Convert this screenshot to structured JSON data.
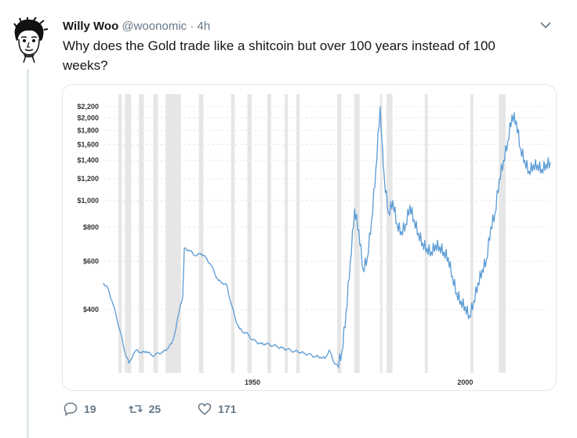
{
  "tweet": {
    "author_name": "Willy Woo",
    "handle": "@woonomic",
    "separator": "·",
    "time": "4h",
    "text": "Why does the Gold trade like a shitcoin but over 100 years instead of 100 weeks?"
  },
  "actions": {
    "replies": "19",
    "retweets": "25",
    "likes": "171"
  },
  "colors": {
    "line": "#5b9bd5",
    "recession": "#e6e6e6",
    "muted": "#657786"
  },
  "icons": [
    "avatar-sketch",
    "chevron-down-icon",
    "reply-icon",
    "retweet-icon",
    "like-icon"
  ],
  "chart_data": {
    "type": "line",
    "scale": "log",
    "x_ticks": [
      1950,
      2000
    ],
    "y_ticks": [
      400,
      600,
      800,
      1000,
      1200,
      1400,
      1600,
      1800,
      2000,
      2200
    ],
    "y_tick_labels": [
      "$400",
      "$600",
      "$800",
      "$1,000",
      "$1,200",
      "$1,400",
      "$1,600",
      "$1,800",
      "$2,000",
      "$2,200"
    ],
    "xlim": [
      1915,
      2020
    ],
    "ylim": [
      235,
      2350
    ],
    "grid": true,
    "recessions": [
      [
        1918.5,
        1919.3
      ],
      [
        1920.0,
        1921.5
      ],
      [
        1923.3,
        1924.5
      ],
      [
        1926.7,
        1927.8
      ],
      [
        1929.6,
        1933.2
      ],
      [
        1937.4,
        1938.5
      ],
      [
        1945.0,
        1945.8
      ],
      [
        1948.8,
        1949.8
      ],
      [
        1953.5,
        1954.4
      ],
      [
        1957.6,
        1958.3
      ],
      [
        1960.3,
        1961.1
      ],
      [
        1969.9,
        1970.9
      ],
      [
        1973.9,
        1975.2
      ],
      [
        1980.0,
        1980.5
      ],
      [
        1981.5,
        1982.9
      ],
      [
        1990.5,
        1991.2
      ],
      [
        2001.2,
        2001.9
      ],
      [
        2007.9,
        2009.5
      ]
    ],
    "series": [
      {
        "values": [
          [
            1915.0,
            500
          ],
          [
            1916.0,
            480
          ],
          [
            1917.0,
            430
          ],
          [
            1918.0,
            380
          ],
          [
            1919.0,
            330
          ],
          [
            1920.0,
            280
          ],
          [
            1921.0,
            255
          ],
          [
            1922.0,
            275
          ],
          [
            1923.0,
            285
          ],
          [
            1924.0,
            278
          ],
          [
            1925.0,
            282
          ],
          [
            1926.0,
            275
          ],
          [
            1927.0,
            272
          ],
          [
            1928.0,
            278
          ],
          [
            1929.0,
            280
          ],
          [
            1930.0,
            288
          ],
          [
            1931.0,
            300
          ],
          [
            1932.0,
            340
          ],
          [
            1933.0,
            410
          ],
          [
            1933.6,
            440
          ],
          [
            1934.0,
            670
          ],
          [
            1935.0,
            660
          ],
          [
            1936.0,
            640
          ],
          [
            1937.0,
            630
          ],
          [
            1938.0,
            640
          ],
          [
            1939.0,
            620
          ],
          [
            1940.0,
            590
          ],
          [
            1941.0,
            550
          ],
          [
            1942.0,
            510
          ],
          [
            1943.0,
            500
          ],
          [
            1944.0,
            490
          ],
          [
            1945.0,
            420
          ],
          [
            1946.0,
            370
          ],
          [
            1947.0,
            340
          ],
          [
            1948.0,
            330
          ],
          [
            1949.0,
            325
          ],
          [
            1950.0,
            310
          ],
          [
            1951.0,
            305
          ],
          [
            1952.0,
            300
          ],
          [
            1953.0,
            300
          ],
          [
            1954.0,
            298
          ],
          [
            1955.0,
            296
          ],
          [
            1956.0,
            292
          ],
          [
            1957.0,
            290
          ],
          [
            1958.0,
            287
          ],
          [
            1959.0,
            284
          ],
          [
            1960.0,
            282
          ],
          [
            1961.0,
            280
          ],
          [
            1962.0,
            278
          ],
          [
            1963.0,
            275
          ],
          [
            1964.0,
            272
          ],
          [
            1965.0,
            270
          ],
          [
            1966.0,
            268
          ],
          [
            1967.0,
            265
          ],
          [
            1968.0,
            285
          ],
          [
            1969.0,
            260
          ],
          [
            1970.0,
            250
          ],
          [
            1971.0,
            280
          ],
          [
            1972.0,
            390
          ],
          [
            1973.0,
            600
          ],
          [
            1974.0,
            930
          ],
          [
            1975.0,
            780
          ],
          [
            1976.0,
            560
          ],
          [
            1977.0,
            620
          ],
          [
            1978.0,
            850
          ],
          [
            1979.0,
            1300
          ],
          [
            1980.0,
            2200
          ],
          [
            1980.5,
            1600
          ],
          [
            1981.0,
            1200
          ],
          [
            1982.0,
            900
          ],
          [
            1983.0,
            1000
          ],
          [
            1984.0,
            820
          ],
          [
            1985.0,
            770
          ],
          [
            1986.0,
            820
          ],
          [
            1987.0,
            960
          ],
          [
            1988.0,
            850
          ],
          [
            1989.0,
            760
          ],
          [
            1990.0,
            700
          ],
          [
            1991.0,
            670
          ],
          [
            1992.0,
            650
          ],
          [
            1993.0,
            690
          ],
          [
            1994.0,
            680
          ],
          [
            1995.0,
            650
          ],
          [
            1996.0,
            620
          ],
          [
            1997.0,
            530
          ],
          [
            1998.0,
            460
          ],
          [
            1999.0,
            430
          ],
          [
            2000.0,
            410
          ],
          [
            2001.0,
            380
          ],
          [
            2002.0,
            430
          ],
          [
            2003.0,
            500
          ],
          [
            2004.0,
            560
          ],
          [
            2005.0,
            610
          ],
          [
            2006.0,
            800
          ],
          [
            2007.0,
            900
          ],
          [
            2008.0,
            1200
          ],
          [
            2009.0,
            1400
          ],
          [
            2010.0,
            1650
          ],
          [
            2011.0,
            2050
          ],
          [
            2012.0,
            1950
          ],
          [
            2013.0,
            1550
          ],
          [
            2014.0,
            1400
          ],
          [
            2015.0,
            1280
          ],
          [
            2016.0,
            1350
          ],
          [
            2017.0,
            1350
          ],
          [
            2018.0,
            1300
          ],
          [
            2019.0,
            1360
          ],
          [
            2020.0,
            1380
          ]
        ]
      }
    ]
  }
}
